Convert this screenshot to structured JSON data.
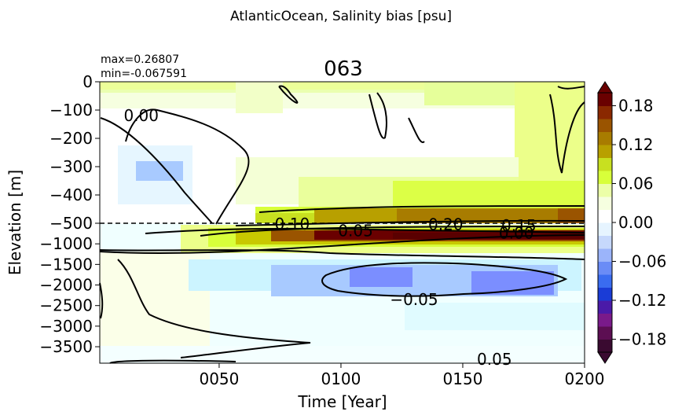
{
  "chart_data": {
    "type": "heatmap",
    "suptitle": "AtlanticOcean, Salinity bias [psu]",
    "title": "063",
    "stats": {
      "max": "max=0.26807",
      "min": "min=-0.067591"
    },
    "xlabel": "Time [Year]",
    "ylabel": "Elevation [m]",
    "x_ticks": [
      "0050",
      "0100",
      "0150",
      "0200"
    ],
    "x_tick_values": [
      50,
      100,
      150,
      200
    ],
    "xlim": [
      1,
      200
    ],
    "y_ticks_upper": [
      "0",
      "−100",
      "−200",
      "−300",
      "−400",
      "−500"
    ],
    "y_tick_values_upper": [
      0,
      -100,
      -200,
      -300,
      -400,
      -500
    ],
    "y_ticks_lower": [
      "−1000",
      "−1500",
      "−2000",
      "−2500",
      "−3000",
      "−3500"
    ],
    "y_tick_values_lower": [
      -1000,
      -1500,
      -2000,
      -2500,
      -3000,
      -3500
    ],
    "ylim": [
      -3900,
      0
    ],
    "break_depth": -500,
    "colorbar": {
      "ticks": [
        "0.18",
        "0.12",
        "0.06",
        "0.00",
        "−0.06",
        "−0.12",
        "−0.18"
      ],
      "tick_values": [
        0.18,
        0.12,
        0.06,
        0.0,
        -0.06,
        -0.12,
        -0.18
      ],
      "range": [
        -0.2,
        0.2
      ],
      "extend": "both",
      "colors": [
        "#3a0a30",
        "#5c0e52",
        "#7a1a8a",
        "#4a1aa8",
        "#1a3cd6",
        "#3a6cf0",
        "#6a8cf6",
        "#9bb4fa",
        "#c6d8fc",
        "#e6f4ff",
        "#ffffff",
        "#f6ffe0",
        "#ecffa8",
        "#d8ff3a",
        "#c8e020",
        "#b8a000",
        "#a87c00",
        "#9a5400",
        "#8a2800",
        "#6a0000"
      ]
    },
    "contour_labels": [
      {
        "text": "0.00",
        "x": 18,
        "y": -120
      },
      {
        "text": "0.10",
        "x": 80,
        "y": -515
      },
      {
        "text": "0.20",
        "x": 143,
        "y": -525
      },
      {
        "text": "0.15",
        "x": 173,
        "y": -560
      },
      {
        "text": "0.05",
        "x": 106,
        "y": -680
      },
      {
        "text": "0.00",
        "x": 172,
        "y": -740
      },
      {
        "text": "−0.05",
        "x": 130,
        "y": -2350
      },
      {
        "text": "0.05",
        "x": 163,
        "y": -3800
      }
    ]
  }
}
